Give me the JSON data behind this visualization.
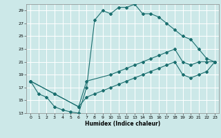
{
  "xlabel": "Humidex (Indice chaleur)",
  "bg_color": "#cce8e8",
  "grid_color": "#ffffff",
  "line_color": "#1a6e6e",
  "xlim": [
    -0.5,
    23.5
  ],
  "ylim": [
    13,
    30
  ],
  "xticks": [
    0,
    1,
    2,
    3,
    4,
    5,
    6,
    7,
    8,
    9,
    10,
    11,
    12,
    13,
    14,
    15,
    16,
    17,
    18,
    19,
    20,
    21,
    22,
    23
  ],
  "yticks": [
    13,
    15,
    17,
    19,
    21,
    23,
    25,
    27,
    29
  ],
  "line1_x": [
    0,
    1,
    2,
    3,
    4,
    5,
    6,
    7,
    8,
    9,
    10,
    11,
    12,
    13,
    14,
    15,
    16,
    17,
    18,
    19,
    20,
    21,
    22,
    23
  ],
  "line1_y": [
    18,
    16,
    15.5,
    14,
    13.5,
    13.2,
    13,
    17,
    27.5,
    29,
    28.5,
    29.5,
    29.5,
    30,
    28.5,
    28.5,
    28,
    27,
    26,
    25,
    24.5,
    23,
    21.5,
    21
  ],
  "line2_x": [
    0,
    3,
    6,
    7,
    10,
    11,
    12,
    13,
    14,
    15,
    16,
    17,
    18,
    19,
    20,
    21,
    22,
    23
  ],
  "line2_y": [
    18,
    16,
    14,
    18,
    19,
    19.5,
    20,
    20.5,
    21,
    21.5,
    22,
    22.5,
    23,
    21,
    20.5,
    21,
    21,
    21
  ],
  "line3_x": [
    0,
    3,
    6,
    7,
    8,
    9,
    10,
    11,
    12,
    13,
    14,
    15,
    16,
    17,
    18,
    19,
    20,
    21,
    22,
    23
  ],
  "line3_y": [
    18,
    16,
    14,
    15.5,
    16,
    16.5,
    17,
    17.5,
    18,
    18.5,
    19,
    19.5,
    20,
    20.5,
    21,
    19,
    18.5,
    19,
    19.5,
    21
  ]
}
